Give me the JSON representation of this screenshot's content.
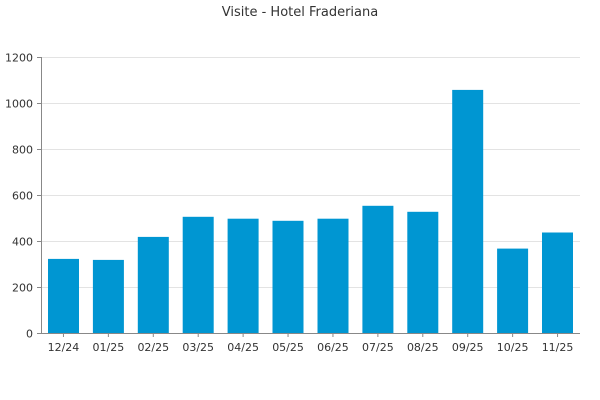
{
  "chart_data": {
    "type": "bar",
    "title": "Visite - Hotel Fraderiana",
    "xlabel": "",
    "ylabel": "",
    "categories": [
      "12/24",
      "01/25",
      "02/25",
      "03/25",
      "04/25",
      "05/25",
      "06/25",
      "07/25",
      "08/25",
      "09/25",
      "10/25",
      "11/25"
    ],
    "values": [
      322,
      318,
      418,
      505,
      497,
      488,
      497,
      553,
      527,
      1057,
      367,
      437
    ],
    "ylim": [
      0,
      1200
    ],
    "yticks": [
      0,
      200,
      400,
      600,
      800,
      1000,
      1200
    ],
    "grid": true,
    "legend": "none",
    "colors": {
      "bar": "#0096d2",
      "grid": "#e3e3e3",
      "axis": "#888888",
      "text": "#333333"
    }
  }
}
